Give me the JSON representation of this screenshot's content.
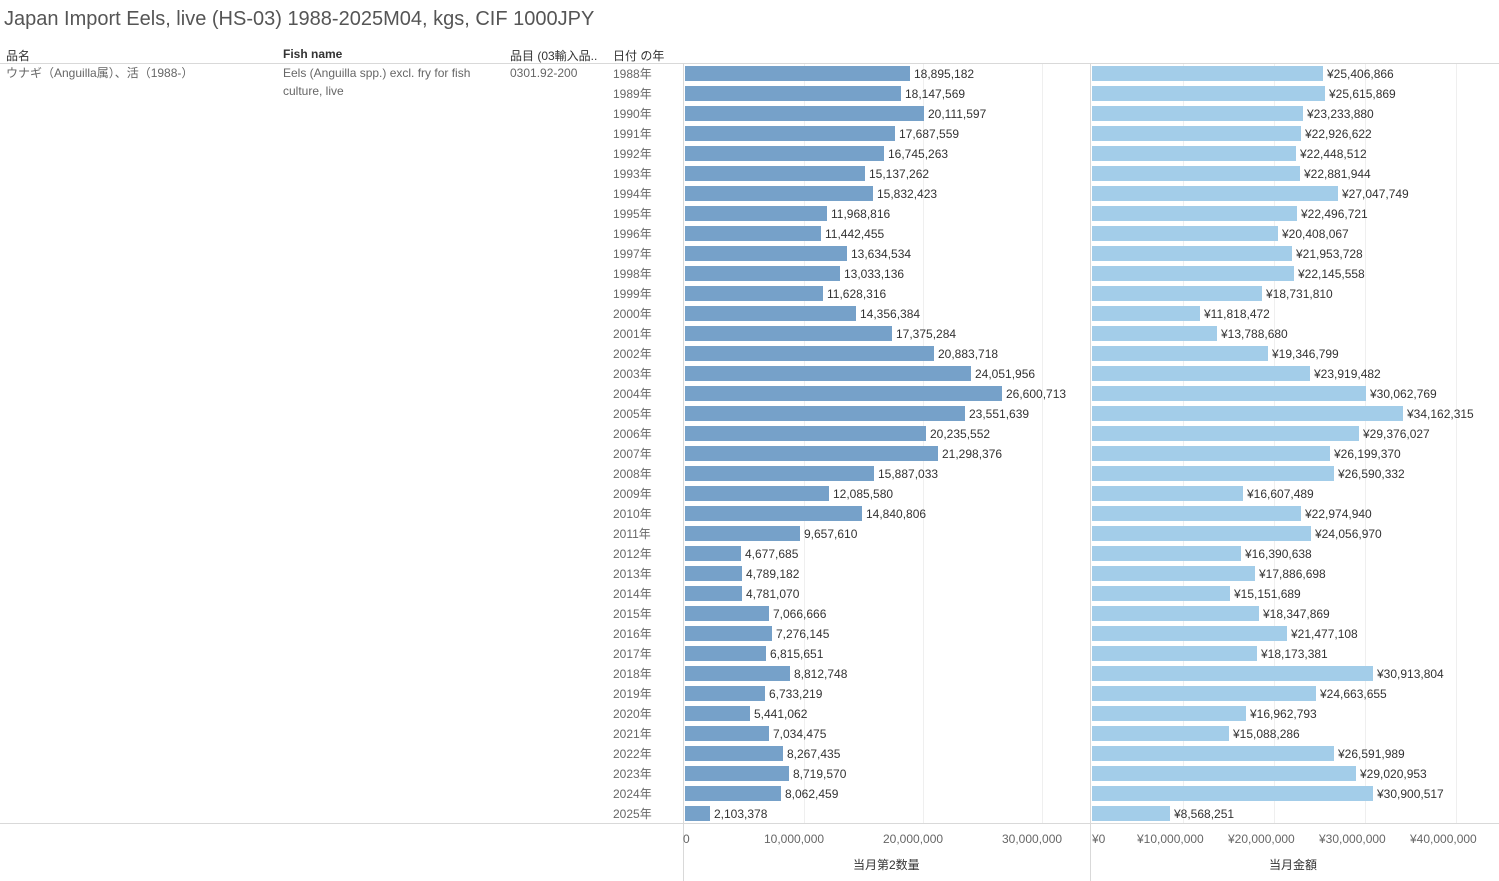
{
  "title": "Japan Import Eels, live (HS-03) 1988-2025M04, kgs, CIF 1000JPY",
  "headers": {
    "col1": "品名",
    "col2": "Fish name",
    "col3": "品目 (03輸入品..",
    "col4": "日付 の年"
  },
  "row": {
    "hinmei": "ウナギ（Anguilla属）、活（1988-）",
    "fish_name": "Eels (Anguilla spp.) excl. fry for fish culture, live",
    "code": "0301.92-200"
  },
  "chart_data": [
    {
      "type": "bar",
      "orientation": "horizontal",
      "xlabel": "当月第2数量",
      "xlim": [
        0,
        35000000
      ],
      "ticks": [
        0,
        10000000,
        20000000,
        30000000
      ],
      "tick_labels": [
        "0",
        "10,000,000",
        "20,000,000",
        "30,000,000"
      ],
      "categories": [
        "1988年",
        "1989年",
        "1990年",
        "1991年",
        "1992年",
        "1993年",
        "1994年",
        "1995年",
        "1996年",
        "1997年",
        "1998年",
        "1999年",
        "2000年",
        "2001年",
        "2002年",
        "2003年",
        "2004年",
        "2005年",
        "2006年",
        "2007年",
        "2008年",
        "2009年",
        "2010年",
        "2011年",
        "2012年",
        "2013年",
        "2014年",
        "2015年",
        "2016年",
        "2017年",
        "2018年",
        "2019年",
        "2020年",
        "2021年",
        "2022年",
        "2023年",
        "2024年",
        "2025年"
      ],
      "values": [
        18895182,
        18147569,
        20111597,
        17687559,
        16745263,
        15137262,
        15832423,
        11968816,
        11442455,
        13634534,
        13033136,
        11628316,
        14356384,
        17375284,
        20883718,
        24051956,
        26600713,
        23551639,
        20235552,
        21298376,
        15887033,
        12085580,
        14840806,
        9657610,
        4677685,
        4789182,
        4781070,
        7066666,
        7276145,
        6815651,
        8812748,
        6733219,
        5441062,
        7034475,
        8267435,
        8719570,
        8062459,
        2103378
      ],
      "value_labels": [
        "18,895,182",
        "18,147,569",
        "20,111,597",
        "17,687,559",
        "16,745,263",
        "15,137,262",
        "15,832,423",
        "11,968,816",
        "11,442,455",
        "13,634,534",
        "13,033,136",
        "11,628,316",
        "14,356,384",
        "17,375,284",
        "20,883,718",
        "24,051,956",
        "26,600,713",
        "23,551,639",
        "20,235,552",
        "21,298,376",
        "15,887,033",
        "12,085,580",
        "14,840,806",
        "9,657,610",
        "4,677,685",
        "4,789,182",
        "4,781,070",
        "7,066,666",
        "7,276,145",
        "6,815,651",
        "8,812,748",
        "6,733,219",
        "5,441,062",
        "7,034,475",
        "8,267,435",
        "8,719,570",
        "8,062,459",
        "2,103,378"
      ],
      "color": "#76a1c9"
    },
    {
      "type": "bar",
      "orientation": "horizontal",
      "xlabel": "当月金額",
      "xlim": [
        0,
        44000000
      ],
      "ticks": [
        0,
        10000000,
        20000000,
        30000000,
        40000000
      ],
      "tick_labels": [
        "¥0",
        "¥10,000,000",
        "¥20,000,000",
        "¥30,000,000",
        "¥40,000,000"
      ],
      "categories": [
        "1988年",
        "1989年",
        "1990年",
        "1991年",
        "1992年",
        "1993年",
        "1994年",
        "1995年",
        "1996年",
        "1997年",
        "1998年",
        "1999年",
        "2000年",
        "2001年",
        "2002年",
        "2003年",
        "2004年",
        "2005年",
        "2006年",
        "2007年",
        "2008年",
        "2009年",
        "2010年",
        "2011年",
        "2012年",
        "2013年",
        "2014年",
        "2015年",
        "2016年",
        "2017年",
        "2018年",
        "2019年",
        "2020年",
        "2021年",
        "2022年",
        "2023年",
        "2024年",
        "2025年"
      ],
      "values": [
        25406866,
        25615869,
        23233880,
        22926622,
        22448512,
        22881944,
        27047749,
        22496721,
        20408067,
        21953728,
        22145558,
        18731810,
        11818472,
        13788680,
        19346799,
        23919482,
        30062769,
        34162315,
        29376027,
        26199370,
        26590332,
        16607489,
        22974940,
        24056970,
        16390638,
        17886698,
        15151689,
        18347869,
        21477108,
        18173381,
        30913804,
        24663655,
        16962793,
        15088286,
        26591989,
        29020953,
        30900517,
        8568251
      ],
      "value_labels": [
        "¥25,406,866",
        "¥25,615,869",
        "¥23,233,880",
        "¥22,926,622",
        "¥22,448,512",
        "¥22,881,944",
        "¥27,047,749",
        "¥22,496,721",
        "¥20,408,067",
        "¥21,953,728",
        "¥22,145,558",
        "¥18,731,810",
        "¥11,818,472",
        "¥13,788,680",
        "¥19,346,799",
        "¥23,919,482",
        "¥30,062,769",
        "¥34,162,315",
        "¥29,376,027",
        "¥26,199,370",
        "¥26,590,332",
        "¥16,607,489",
        "¥22,974,940",
        "¥24,056,970",
        "¥16,390,638",
        "¥17,886,698",
        "¥15,151,689",
        "¥18,347,869",
        "¥21,477,108",
        "¥18,173,381",
        "¥30,913,804",
        "¥24,663,655",
        "¥16,962,793",
        "¥15,088,286",
        "¥26,591,989",
        "¥29,020,953",
        "¥30,900,517",
        "¥8,568,251"
      ],
      "color": "#a3cde9"
    }
  ]
}
